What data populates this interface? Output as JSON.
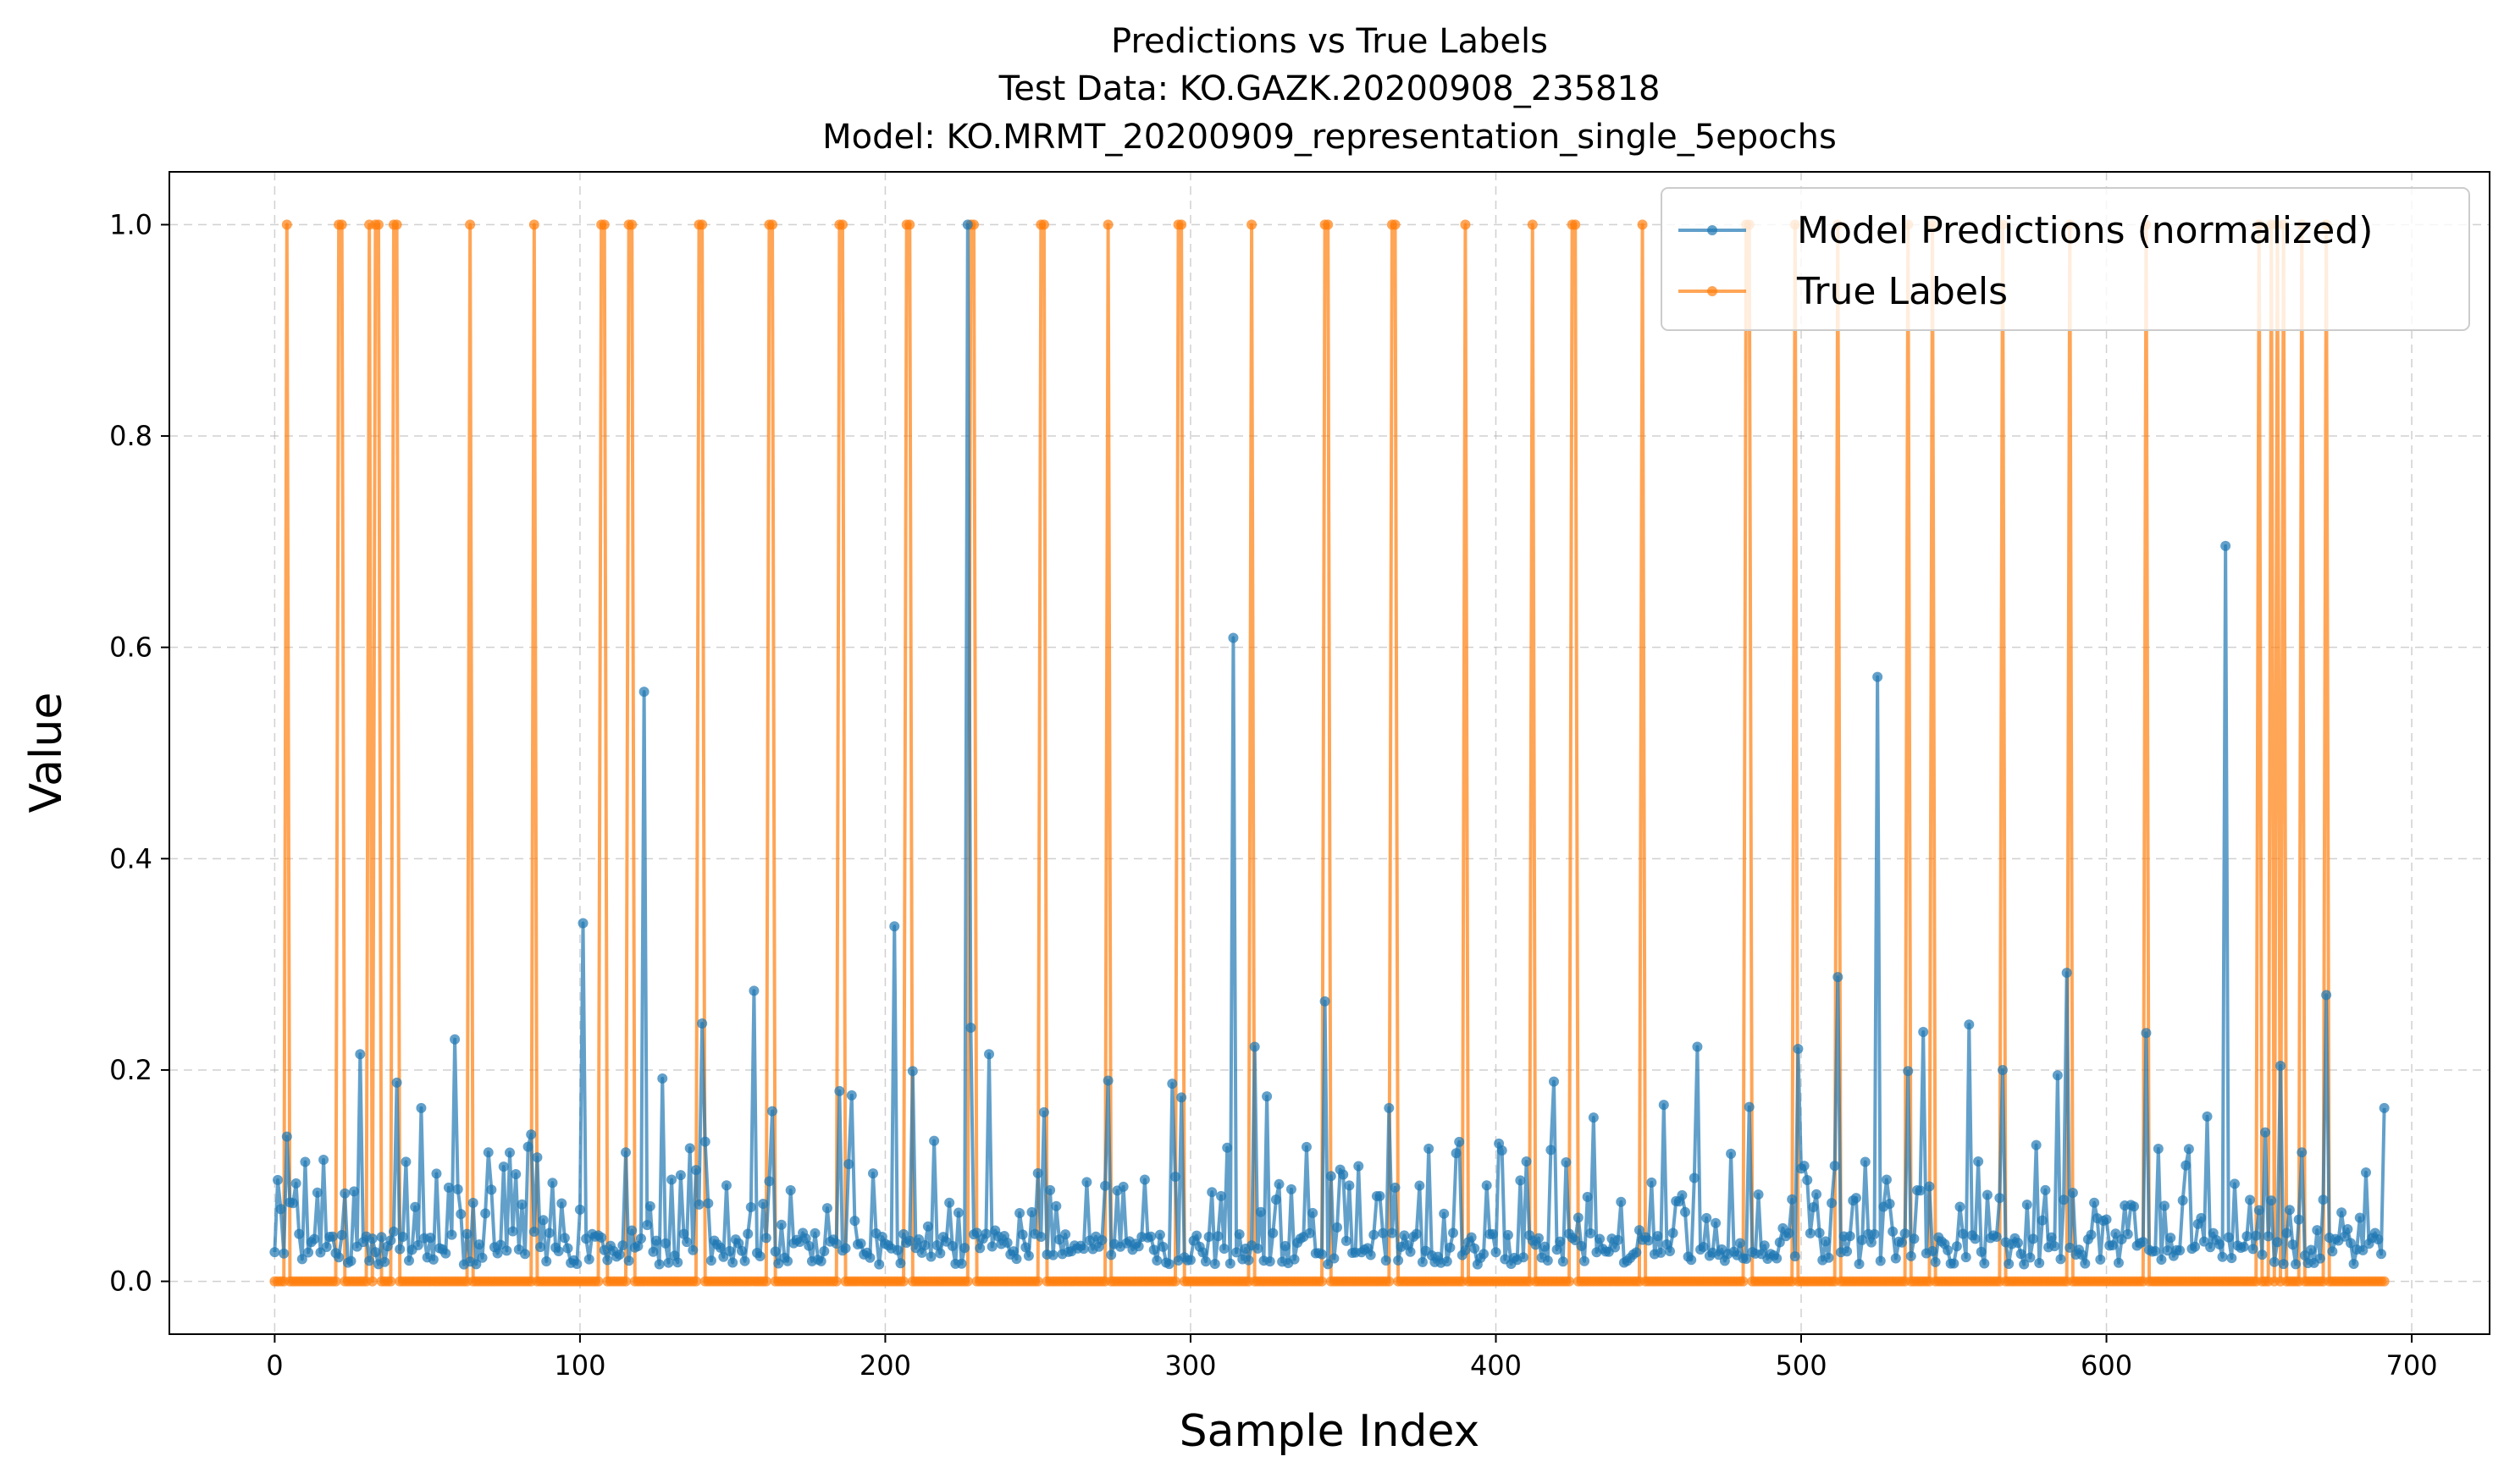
{
  "chart_data": {
    "type": "line",
    "title_lines": [
      "Predictions vs True Labels",
      "Test Data: KO.GAZK.20200908_235818",
      "Model: KO.MRMT_20200909_representation_single_5epochs"
    ],
    "xlabel": "Sample Index",
    "ylabel": "Value",
    "xlim": [
      -34.5,
      725.5
    ],
    "ylim": [
      -0.05,
      1.05
    ],
    "xticks": [
      0,
      100,
      200,
      300,
      400,
      500,
      600,
      700
    ],
    "yticks": [
      0.0,
      0.2,
      0.4,
      0.6,
      0.8,
      1.0
    ],
    "xtick_labels": [
      "0",
      "100",
      "200",
      "300",
      "400",
      "500",
      "600",
      "700"
    ],
    "ytick_labels": [
      "0.0",
      "0.2",
      "0.4",
      "0.6",
      "0.8",
      "1.0"
    ],
    "grid": true,
    "legend_position": "top-right",
    "n_points": 692,
    "series": [
      {
        "name": "Model Predictions (normalized)",
        "color": "#1f77b4",
        "peaks": [
          [
            4,
            0.137
          ],
          [
            6,
            0.074
          ],
          [
            10,
            0.113
          ],
          [
            14,
            0.084
          ],
          [
            28,
            0.215
          ],
          [
            40,
            0.188
          ],
          [
            48,
            0.164
          ],
          [
            59,
            0.229
          ],
          [
            70,
            0.122
          ],
          [
            84,
            0.139
          ],
          [
            101,
            0.339
          ],
          [
            115,
            0.122
          ],
          [
            121,
            0.558
          ],
          [
            127,
            0.192
          ],
          [
            140,
            0.244
          ],
          [
            157,
            0.275
          ],
          [
            163,
            0.161
          ],
          [
            185,
            0.18
          ],
          [
            189,
            0.176
          ],
          [
            203,
            0.336
          ],
          [
            209,
            0.199
          ],
          [
            216,
            0.133
          ],
          [
            227,
            1.0
          ],
          [
            228,
            0.24
          ],
          [
            234,
            0.215
          ],
          [
            252,
            0.16
          ],
          [
            273,
            0.19
          ],
          [
            294,
            0.187
          ],
          [
            297,
            0.174
          ],
          [
            314,
            0.609
          ],
          [
            321,
            0.222
          ],
          [
            325,
            0.175
          ],
          [
            344,
            0.265
          ],
          [
            365,
            0.164
          ],
          [
            388,
            0.132
          ],
          [
            419,
            0.189
          ],
          [
            432,
            0.155
          ],
          [
            455,
            0.167
          ],
          [
            466,
            0.222
          ],
          [
            483,
            0.165
          ],
          [
            499,
            0.22
          ],
          [
            512,
            0.288
          ],
          [
            525,
            0.572
          ],
          [
            535,
            0.199
          ],
          [
            540,
            0.236
          ],
          [
            555,
            0.243
          ],
          [
            566,
            0.2
          ],
          [
            584,
            0.195
          ],
          [
            587,
            0.292
          ],
          [
            613,
            0.235
          ],
          [
            633,
            0.156
          ],
          [
            639,
            0.696
          ],
          [
            652,
            0.141
          ],
          [
            657,
            0.204
          ],
          [
            664,
            0.122
          ],
          [
            672,
            0.271
          ],
          [
            691,
            0.164
          ]
        ]
      },
      {
        "name": "True Labels",
        "color": "#ff7f0e",
        "ones": [
          4,
          21,
          22,
          31,
          33,
          34,
          39,
          40,
          64,
          85,
          107,
          108,
          116,
          117,
          139,
          140,
          162,
          163,
          185,
          186,
          207,
          208,
          228,
          229,
          251,
          252,
          273,
          296,
          297,
          320,
          344,
          345,
          366,
          367,
          390,
          412,
          425,
          426,
          448,
          482,
          483,
          498,
          512,
          535,
          543,
          566,
          588,
          613,
          650,
          654,
          656,
          658,
          664,
          672
        ]
      }
    ]
  }
}
